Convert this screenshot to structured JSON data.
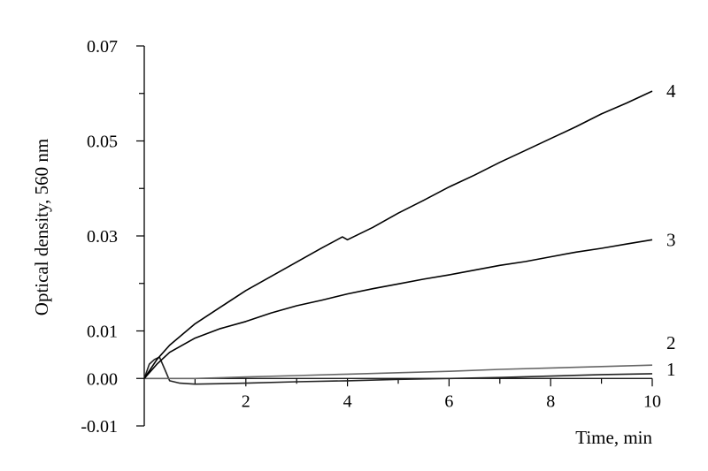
{
  "chart_data": {
    "type": "line",
    "title": "",
    "xlabel": "Time, min",
    "ylabel": "Optical density, 560 nm",
    "xlim": [
      0,
      10
    ],
    "ylim": [
      -0.01,
      0.07
    ],
    "x_major_ticks": [
      2,
      4,
      6,
      8,
      10
    ],
    "x_tick_labels": [
      "2",
      "4",
      "6",
      "8",
      "10"
    ],
    "y_major_ticks": [
      -0.01,
      0.0,
      0.01,
      0.03,
      0.05,
      0.07
    ],
    "y_tick_labels": [
      "-0.01",
      "0.00",
      "0.01",
      "0.03",
      "0.05",
      "0.07"
    ],
    "y_minor_ticks": [
      0.02,
      0.04,
      0.06
    ],
    "grid": false,
    "series": [
      {
        "name": "1",
        "color": "#222222",
        "points": [
          [
            0,
            0
          ],
          [
            0.1,
            0.003
          ],
          [
            0.2,
            0.004
          ],
          [
            0.3,
            0.0045
          ],
          [
            0.4,
            0.002
          ],
          [
            0.5,
            -0.0005
          ],
          [
            0.7,
            -0.001
          ],
          [
            1.0,
            -0.0012
          ],
          [
            1.5,
            -0.0011
          ],
          [
            2,
            -0.001
          ],
          [
            3,
            -0.0007
          ],
          [
            4,
            -0.0005
          ],
          [
            5,
            -0.0002
          ],
          [
            6,
            0.0
          ],
          [
            7,
            0.0002
          ],
          [
            8,
            0.0005
          ],
          [
            9,
            0.0008
          ],
          [
            10,
            0.001
          ]
        ]
      },
      {
        "name": "2",
        "color": "#666666",
        "points": [
          [
            0,
            0
          ],
          [
            1,
            0
          ],
          [
            2,
            0.0003
          ],
          [
            3,
            0.0006
          ],
          [
            4,
            0.0009
          ],
          [
            5,
            0.0012
          ],
          [
            6,
            0.0015
          ],
          [
            7,
            0.0019
          ],
          [
            8,
            0.0022
          ],
          [
            9,
            0.0025
          ],
          [
            10,
            0.0028
          ]
        ]
      },
      {
        "name": "3",
        "color": "#000000",
        "points": [
          [
            0,
            0
          ],
          [
            0.25,
            0.003
          ],
          [
            0.5,
            0.0055
          ],
          [
            1,
            0.0085
          ],
          [
            1.5,
            0.0105
          ],
          [
            2,
            0.012
          ],
          [
            2.5,
            0.0138
          ],
          [
            3,
            0.0153
          ],
          [
            3.5,
            0.0165
          ],
          [
            4,
            0.0178
          ],
          [
            4.5,
            0.0189
          ],
          [
            5,
            0.0199
          ],
          [
            5.5,
            0.0209
          ],
          [
            6,
            0.0218
          ],
          [
            6.5,
            0.0228
          ],
          [
            7,
            0.0238
          ],
          [
            7.5,
            0.0246
          ],
          [
            8,
            0.0256
          ],
          [
            8.5,
            0.0266
          ],
          [
            9,
            0.0274
          ],
          [
            9.5,
            0.0283
          ],
          [
            10,
            0.0292
          ]
        ]
      },
      {
        "name": "4",
        "color": "#000000",
        "points": [
          [
            0,
            0
          ],
          [
            0.25,
            0.004
          ],
          [
            0.5,
            0.007
          ],
          [
            1,
            0.0115
          ],
          [
            1.5,
            0.015
          ],
          [
            2,
            0.0185
          ],
          [
            2.5,
            0.0215
          ],
          [
            3,
            0.0245
          ],
          [
            3.5,
            0.0275
          ],
          [
            3.9,
            0.0298
          ],
          [
            4.0,
            0.0292
          ],
          [
            4.5,
            0.0318
          ],
          [
            5,
            0.0348
          ],
          [
            5.5,
            0.0375
          ],
          [
            6,
            0.0403
          ],
          [
            6.5,
            0.0428
          ],
          [
            7,
            0.0455
          ],
          [
            7.5,
            0.048
          ],
          [
            8,
            0.0505
          ],
          [
            8.5,
            0.053
          ],
          [
            9,
            0.0557
          ],
          [
            9.5,
            0.058
          ],
          [
            10,
            0.0605
          ]
        ]
      }
    ]
  }
}
